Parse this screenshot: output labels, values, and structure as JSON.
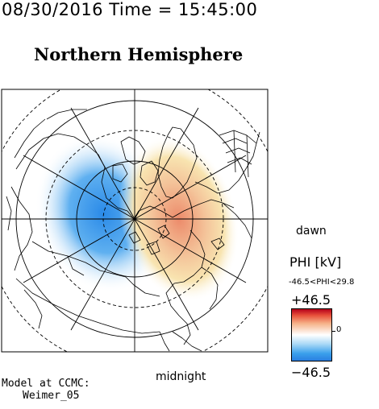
{
  "header": {
    "timestamp": "08/30/2016 Time = 15:45:00",
    "hemisphere": "Northern Hemisphere"
  },
  "orientation": {
    "right_label": "dawn",
    "bottom_label": "midnight"
  },
  "colorbar": {
    "title": "PHI [kV]",
    "range_text": "-46.5<PHI<29.8",
    "max_label": "+46.5",
    "min_label": "−46.5",
    "zero_label": "0",
    "colors": {
      "high": "#b4001a",
      "mid": "#ffffff",
      "low": "#2a7ee0"
    }
  },
  "credits": {
    "line1": "Model at CCMC:",
    "line2": "Weimer_05"
  }
}
